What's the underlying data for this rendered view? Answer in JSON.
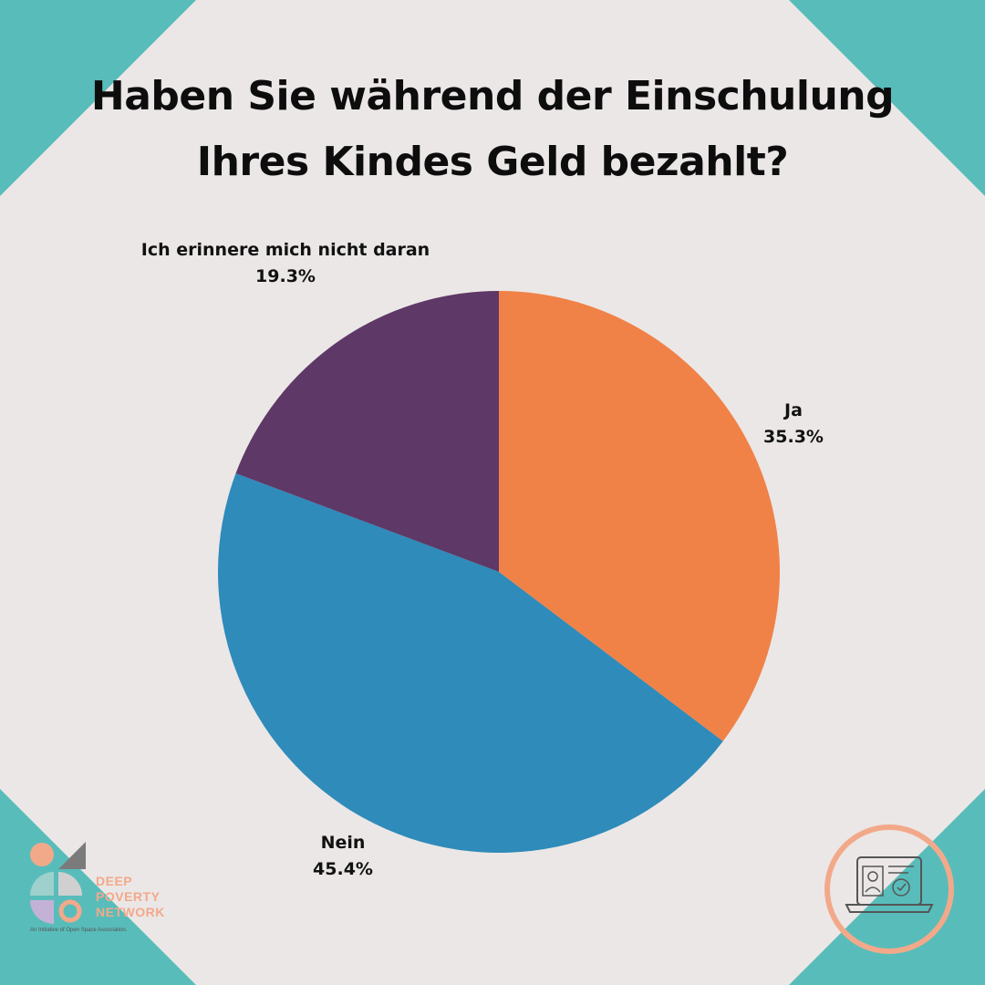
{
  "chart_data": {
    "type": "pie",
    "title": "Haben Sie während der Einschulung\nIhres Kindes Geld bezahlt?",
    "slices": [
      {
        "label": "Ja",
        "value": 35.3,
        "value_text": "35.3%",
        "color": "#f08248"
      },
      {
        "label": "Nein",
        "value": 45.4,
        "value_text": "45.4%",
        "color": "#2e8bba"
      },
      {
        "label": "Ich erinnere mich nicht daran",
        "value": 19.3,
        "value_text": "19.3%",
        "color": "#5e3866"
      }
    ],
    "start": "12 o'clock",
    "direction": "clockwise"
  },
  "branding": {
    "logo_lines": [
      "DEEP",
      "POVERTY",
      "NETWORK"
    ],
    "logo_tagline": "An Initiative of Open Space Association.",
    "logo_colors": {
      "peach": "#f2a98a",
      "mint": "#9ed0cd",
      "gray": "#7b7b7b",
      "lavender": "#c4b1d6",
      "light_gray": "#d0d0d0"
    },
    "badge_icon": "laptop-id-check-icon",
    "badge_color": "#f2a98a"
  },
  "theme": {
    "background": "#ebe7e6",
    "corner_accent": "#58bdba"
  }
}
